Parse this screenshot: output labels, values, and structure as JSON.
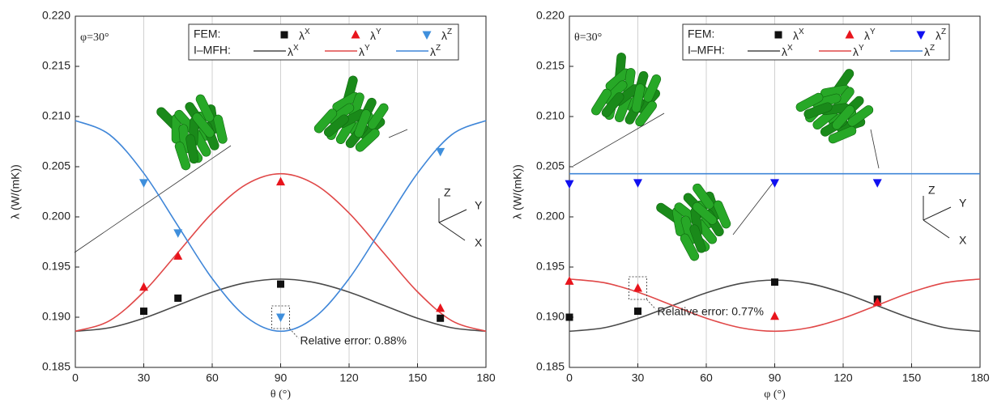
{
  "chart_data": [
    {
      "type": "line",
      "annotation": "φ=30°",
      "note": "Relative error: 0.88%",
      "note_target": 2,
      "triad": [
        "Z",
        "Y",
        "X"
      ],
      "legend_titles": {
        "scatter": "FEM:",
        "line": "I–MFH:"
      },
      "xlabel": "θ (°)",
      "ylabel": "λ (W/(mK))",
      "xlim": [
        0,
        180
      ],
      "xticks": [
        0,
        30,
        60,
        90,
        120,
        150,
        180
      ],
      "ylim": [
        0.185,
        0.22
      ],
      "yticks": [
        0.185,
        {
          "value": 0.19,
          "label": "0.190"
        },
        0.195,
        {
          "value": 0.2,
          "label": "0.200"
        },
        0.205,
        {
          "value": 0.21,
          "label": "0.210"
        },
        0.215,
        {
          "value": 0.22,
          "label": "0.220"
        }
      ],
      "grid": "x",
      "series": [
        {
          "name": "λX",
          "kind": "scatter",
          "marker": "square",
          "color": "#111111",
          "x": [
            30,
            45,
            90,
            160
          ],
          "values": [
            0.1906,
            0.1919,
            0.1933,
            0.1899
          ]
        },
        {
          "name": "λY",
          "kind": "scatter",
          "marker": "triangle-up",
          "color": "#e8141c",
          "x": [
            30,
            45,
            90,
            160
          ],
          "values": [
            0.193,
            0.1961,
            0.2035,
            0.1909
          ]
        },
        {
          "name": "λZ",
          "kind": "scatter",
          "marker": "triangle-down",
          "color": "#3f8fdc",
          "x": [
            30,
            45,
            90,
            160
          ],
          "values": [
            0.2034,
            0.1984,
            0.19,
            0.2065
          ]
        },
        {
          "name": "λX",
          "kind": "line",
          "color": "#4a4a4a",
          "x": [
            0,
            15,
            30,
            45,
            60,
            75,
            90,
            105,
            120,
            135,
            150,
            165,
            180
          ],
          "values": [
            0.1886,
            0.18895,
            0.1899,
            0.1912,
            0.1925,
            0.19345,
            0.1938,
            0.19345,
            0.1925,
            0.1912,
            0.1899,
            0.18895,
            0.1886
          ]
        },
        {
          "name": "λY",
          "kind": "line",
          "color": "#e04848",
          "x": [
            0,
            15,
            30,
            45,
            60,
            75,
            90,
            105,
            120,
            135,
            150,
            165,
            180
          ],
          "values": [
            0.1886,
            0.18965,
            0.19253,
            0.19645,
            0.20038,
            0.20325,
            0.2043,
            0.20325,
            0.20038,
            0.19645,
            0.19253,
            0.18965,
            0.1886
          ]
        },
        {
          "name": "λZ",
          "kind": "line",
          "color": "#3f86d8",
          "x": [
            0,
            15,
            30,
            45,
            60,
            75,
            90,
            105,
            120,
            135,
            150,
            165,
            180
          ],
          "values": [
            0.2096,
            0.20819,
            0.20435,
            0.1991,
            0.19385,
            0.19001,
            0.1886,
            0.19001,
            0.19385,
            0.1991,
            0.20435,
            0.20819,
            0.2096
          ]
        }
      ]
    },
    {
      "type": "line",
      "annotation": "θ=30°",
      "note": "Relative error: 0.77%",
      "note_target": 1,
      "triad": [
        "Z",
        "Y",
        "X"
      ],
      "legend_titles": {
        "scatter": "FEM:",
        "line": "I–MFH:"
      },
      "xlabel": "φ (°)",
      "ylabel": "λ (W/(mK))",
      "xlim": [
        0,
        180
      ],
      "xticks": [
        0,
        30,
        60,
        90,
        120,
        150,
        180
      ],
      "ylim": [
        0.185,
        0.22
      ],
      "yticks": [
        0.185,
        {
          "value": 0.19,
          "label": "0.190"
        },
        0.195,
        {
          "value": 0.2,
          "label": "0.200"
        },
        0.205,
        {
          "value": 0.21,
          "label": "0.210"
        },
        0.215,
        {
          "value": 0.22,
          "label": "0.220"
        }
      ],
      "grid": "x",
      "series": [
        {
          "name": "λX",
          "kind": "scatter",
          "marker": "square",
          "color": "#111111",
          "x": [
            0,
            30,
            90,
            135
          ],
          "values": [
            0.19,
            0.1906,
            0.1935,
            0.1918
          ]
        },
        {
          "name": "λY",
          "kind": "scatter",
          "marker": "triangle-up",
          "color": "#e8141c",
          "x": [
            0,
            30,
            90,
            135
          ],
          "values": [
            0.1936,
            0.1929,
            0.1901,
            0.1915
          ]
        },
        {
          "name": "λZ",
          "kind": "scatter",
          "marker": "triangle-down",
          "color": "#1010f0",
          "x": [
            0,
            30,
            90,
            135
          ],
          "values": [
            0.2033,
            0.2034,
            0.2034,
            0.2034
          ]
        },
        {
          "name": "λX",
          "kind": "line",
          "color": "#4a4a4a",
          "x": [
            0,
            15,
            30,
            45,
            60,
            75,
            90,
            105,
            120,
            135,
            150,
            165,
            180
          ],
          "values": [
            0.1886,
            0.18894,
            0.18988,
            0.19115,
            0.19243,
            0.19336,
            0.1937,
            0.19336,
            0.19243,
            0.19115,
            0.18988,
            0.18894,
            0.1886
          ]
        },
        {
          "name": "λY",
          "kind": "line",
          "color": "#e04848",
          "x": [
            0,
            15,
            30,
            45,
            60,
            75,
            90,
            105,
            120,
            135,
            150,
            165,
            180
          ],
          "values": [
            0.1938,
            0.19345,
            0.1925,
            0.1912,
            0.1899,
            0.18895,
            0.1886,
            0.18895,
            0.1899,
            0.1912,
            0.1925,
            0.19345,
            0.1938
          ]
        },
        {
          "name": "λZ",
          "kind": "line",
          "color": "#3f86d8",
          "x": [
            0,
            15,
            30,
            45,
            60,
            75,
            90,
            105,
            120,
            135,
            150,
            165,
            180
          ],
          "values": [
            0.2043,
            0.2043,
            0.2043,
            0.2043,
            0.2043,
            0.2043,
            0.2043,
            0.2043,
            0.2043,
            0.2043,
            0.2043,
            0.2043,
            0.2043
          ]
        }
      ]
    }
  ]
}
